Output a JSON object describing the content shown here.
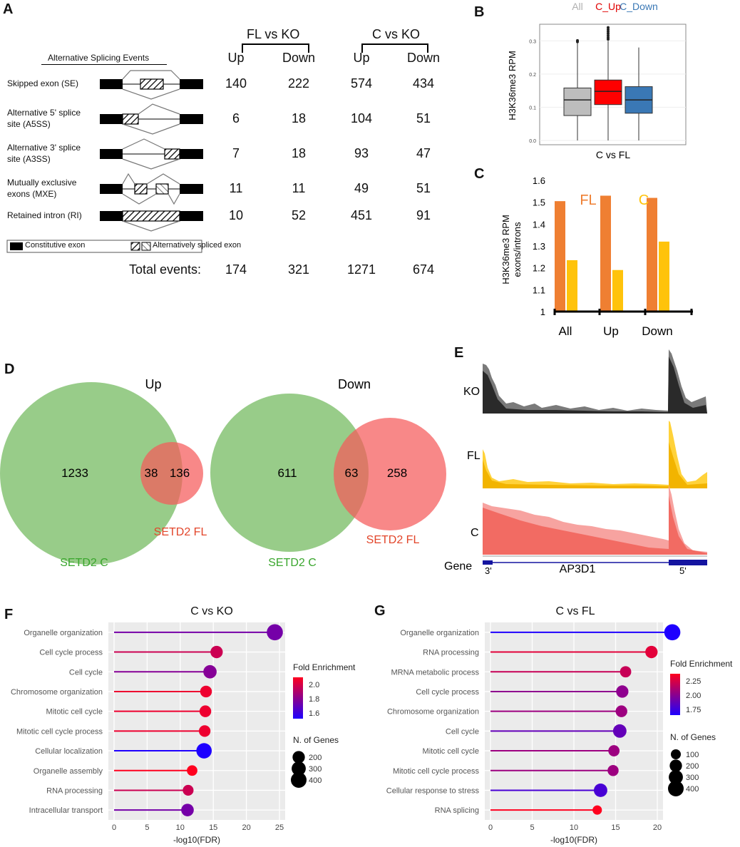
{
  "panels": {
    "A": {
      "label": "A",
      "title": "Alternative Splicing Events",
      "group_headers": [
        "FL vs KO",
        "C vs KO"
      ],
      "col_headers": [
        "Up",
        "Down",
        "Up",
        "Down"
      ],
      "rows": [
        {
          "name_line1": "Skipped exon (SE)",
          "name_line2": "",
          "values": [
            "140",
            "222",
            "574",
            "434"
          ]
        },
        {
          "name_line1": "Alternative 5' splice",
          "name_line2": "site (A5SS)",
          "values": [
            "6",
            "18",
            "104",
            "51"
          ]
        },
        {
          "name_line1": "Alternative 3' splice",
          "name_line2": "site (A3SS)",
          "values": [
            "7",
            "18",
            "93",
            "47"
          ]
        },
        {
          "name_line1": "Mutually exclusive",
          "name_line2": "exons (MXE)",
          "values": [
            "11",
            "11",
            "49",
            "51"
          ]
        },
        {
          "name_line1": "Retained intron (RI)",
          "name_line2": "",
          "values": [
            "10",
            "52",
            "451",
            "91"
          ]
        }
      ],
      "legend": {
        "constitutive": "Constitutive exon",
        "alternative": "Alternatively spliced exon"
      },
      "total_label": "Total events:",
      "totals": [
        "174",
        "321",
        "1271",
        "674"
      ]
    },
    "B": {
      "label": "B"
    },
    "C": {
      "label": "C"
    },
    "D": {
      "label": "D",
      "up": {
        "title": "Up",
        "only_c": "1233",
        "overlap": "38",
        "only_fl": "136",
        "c_label": "SETD2 C",
        "fl_label": "SETD2 FL"
      },
      "down": {
        "title": "Down",
        "only_c": "611",
        "overlap": "63",
        "only_fl": "258",
        "c_label": "SETD2 C",
        "fl_label": "SETD2 FL"
      }
    },
    "E": {
      "label": "E",
      "tracks": [
        "KO",
        "FL",
        "C"
      ],
      "gene_label": "Gene",
      "gene_name": "AP3D1",
      "end3": "3'",
      "end5": "5'"
    },
    "F": {
      "label": "F"
    },
    "G": {
      "label": "G"
    }
  },
  "chart_data": [
    {
      "id": "B",
      "type": "box",
      "title": "",
      "xlabel": "C vs FL",
      "ylabel": "H3K36me3 RPM",
      "ylim": [
        0,
        0.35
      ],
      "yticks": [
        "0.0",
        "0.1",
        "0.2",
        "0.3"
      ],
      "legend": [
        "All",
        "C_Up",
        "C_Down"
      ],
      "colors": [
        "#bdbdbd",
        "#ff0000",
        "#3a78b5"
      ],
      "legend_colors": [
        "#b0b0b0",
        "#e00000",
        "#3a78b5"
      ],
      "series": [
        {
          "name": "All",
          "q1": 0.075,
          "median": 0.122,
          "q3": 0.158,
          "whisker_low": 0.0,
          "whisker_high": 0.295,
          "outliers": [
            0.297,
            0.301
          ]
        },
        {
          "name": "C_Up",
          "q1": 0.108,
          "median": 0.148,
          "q3": 0.182,
          "whisker_low": 0.0,
          "whisker_high": 0.3,
          "outliers": [
            0.305,
            0.31,
            0.316,
            0.322,
            0.328,
            0.334,
            0.34
          ]
        },
        {
          "name": "C_Down",
          "q1": 0.082,
          "median": 0.122,
          "q3": 0.162,
          "whisker_low": 0.0,
          "whisker_high": 0.28,
          "outliers": []
        }
      ]
    },
    {
      "id": "C",
      "type": "bar",
      "title": "",
      "ylabel_line1": "H3K36me3 RPM",
      "ylabel_line2": "exons/introns",
      "categories": [
        "All",
        "Up",
        "Down"
      ],
      "ylim": [
        1,
        1.6
      ],
      "yticks": [
        "1",
        "1.1",
        "1.2",
        "1.3",
        "1.4",
        "1.5",
        "1.6"
      ],
      "series": [
        {
          "name": "FL",
          "color": "#ef7f32",
          "values": [
            1.505,
            1.53,
            1.52
          ]
        },
        {
          "name": "C",
          "color": "#ffc30b",
          "values": [
            1.235,
            1.19,
            1.32
          ]
        }
      ]
    },
    {
      "id": "F",
      "type": "lollipop",
      "title": "C vs KO",
      "xlabel": "-log10(FDR)",
      "xlim": [
        0,
        25
      ],
      "xticks": [
        "0",
        "5",
        "10",
        "15",
        "20",
        "25"
      ],
      "color_legend": {
        "title": "Fold Enrichment",
        "labels": [
          "2.0",
          "1.8",
          "1.6"
        ]
      },
      "size_legend": {
        "title": "N. of Genes",
        "labels": [
          "200",
          "300",
          "400"
        ]
      },
      "categories": [
        "Organelle organization",
        "Cell cycle process",
        "Cell cycle",
        "Chromosome organization",
        "Mitotic cell cycle",
        "Mitotic cell cycle process",
        "Cellular localization",
        "Organelle assembly",
        "RNA processing",
        "Intracellular transport"
      ],
      "values": [
        24.3,
        15.5,
        14.5,
        13.9,
        13.8,
        13.7,
        13.6,
        11.8,
        11.2,
        11.1
      ],
      "fold_enrichment": [
        1.75,
        2.0,
        1.8,
        2.1,
        2.1,
        2.1,
        1.5,
        2.15,
        2.0,
        1.75
      ],
      "n_genes": [
        430,
        200,
        250,
        170,
        170,
        165,
        380,
        120,
        130,
        210
      ]
    },
    {
      "id": "G",
      "type": "lollipop",
      "title": "C vs FL",
      "xlabel": "-log10(FDR)",
      "xlim": [
        0,
        20
      ],
      "xticks": [
        "0",
        "5",
        "10",
        "15",
        "20"
      ],
      "color_legend": {
        "title": "Fold Enrichment",
        "labels": [
          "2.25",
          "2.00",
          "1.75"
        ]
      },
      "size_legend": {
        "title": "N. of Genes",
        "labels": [
          "100",
          "200",
          "300",
          "400"
        ]
      },
      "categories": [
        "Organelle organization",
        "RNA processing",
        "MRNA metabolic process",
        "Cell cycle process",
        "Chromosome organization",
        "Cell cycle",
        "Mitotic cell cycle",
        "Mitotic cell cycle process",
        "Cellular response to stress",
        "RNA splicing"
      ],
      "values": [
        21.8,
        19.3,
        16.2,
        15.8,
        15.7,
        15.5,
        14.8,
        14.7,
        13.2,
        12.8
      ],
      "fold_enrichment": [
        1.6,
        2.3,
        2.2,
        2.0,
        2.05,
        1.85,
        2.05,
        2.05,
        1.75,
        2.4
      ],
      "n_genes": [
        430,
        200,
        150,
        200,
        170,
        260,
        150,
        140,
        260,
        80
      ]
    }
  ]
}
